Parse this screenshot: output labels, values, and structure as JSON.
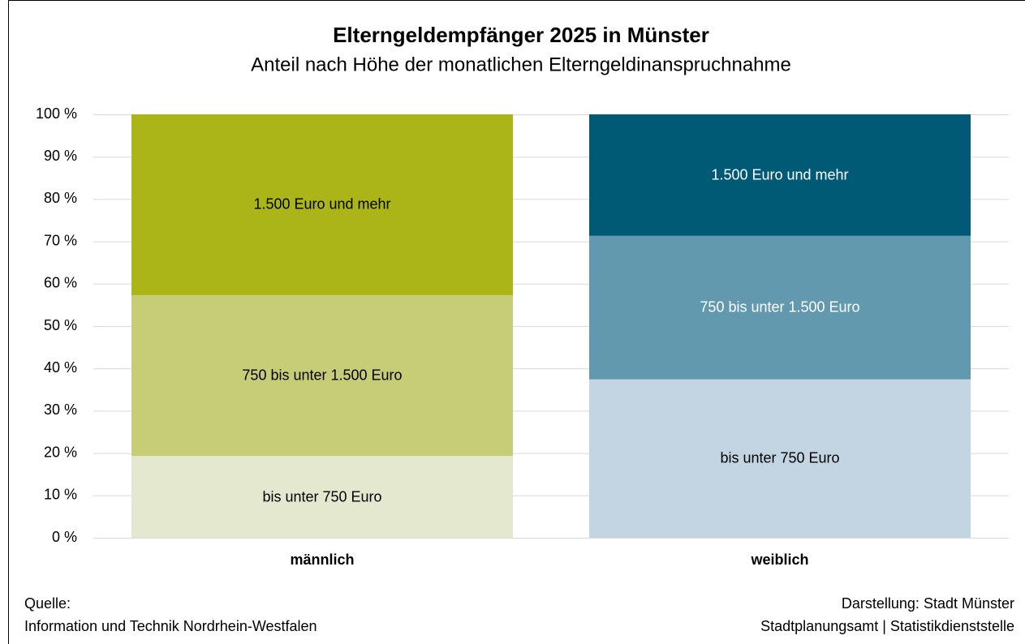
{
  "chart_data": {
    "type": "stacked_bar",
    "title": "Elterngeldempfänger 2025 in Münster",
    "subtitle": "Anteil nach Höhe der monatlichen Elterngeldinanspruchnahme",
    "categories": [
      "männlich",
      "weiblich"
    ],
    "series": [
      {
        "name": "bis unter 750 Euro",
        "colors": [
          "#e3e8cf",
          "#c3d5e3"
        ],
        "label_colors": [
          "#000000",
          "#000000"
        ],
        "values": [
          19.3,
          37.4
        ]
      },
      {
        "name": "750 bis unter 1.500 Euro",
        "colors": [
          "#c7cd77",
          "#6299ae"
        ],
        "label_colors": [
          "#000000",
          "#ffffff"
        ],
        "values": [
          38.0,
          33.9
        ]
      },
      {
        "name": "1.500 Euro und mehr",
        "colors": [
          "#abb518",
          "#005a76"
        ],
        "label_colors": [
          "#000000",
          "#ffffff"
        ],
        "values": [
          42.7,
          28.7
        ]
      }
    ],
    "ylim": [
      0,
      100
    ],
    "yticks": [
      {
        "value": 0,
        "label": "0 %"
      },
      {
        "value": 10,
        "label": "10 %"
      },
      {
        "value": 20,
        "label": "20 %"
      },
      {
        "value": 30,
        "label": "30 %"
      },
      {
        "value": 40,
        "label": "40 %"
      },
      {
        "value": 50,
        "label": "50 %"
      },
      {
        "value": 60,
        "label": "60 %"
      },
      {
        "value": 70,
        "label": "70 %"
      },
      {
        "value": 80,
        "label": "80 %"
      },
      {
        "value": 90,
        "label": "90 %"
      },
      {
        "value": 100,
        "label": "100 %"
      }
    ],
    "grid": true,
    "source_label": "Quelle:",
    "source": "Information und Technik Nordrhein-Westfalen",
    "credit_label": "Darstellung: Stadt Münster",
    "credit": "Stadtplanungsamt | Statistikdienststelle"
  }
}
